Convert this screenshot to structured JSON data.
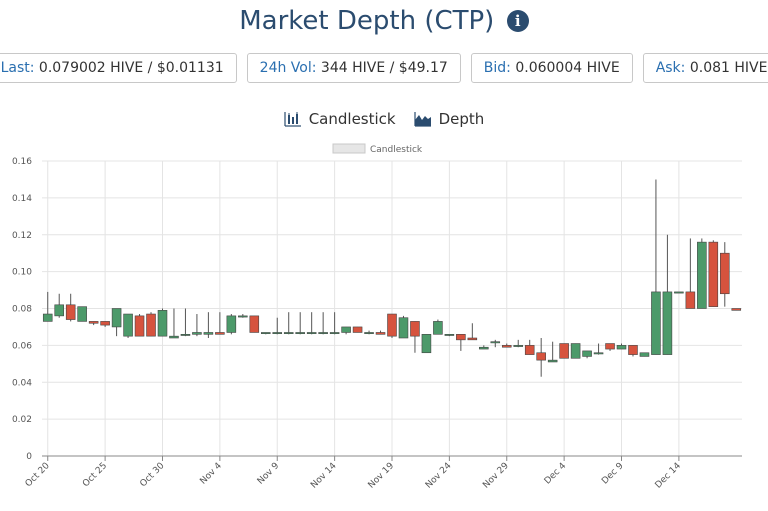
{
  "title": "Market Depth (CTP)",
  "info_icon": "info-circle-icon",
  "stats": [
    {
      "key": "Last:",
      "value": "0.079002 HIVE / $0.01131"
    },
    {
      "key": "24h Vol:",
      "value": "344 HIVE / $49.17"
    },
    {
      "key": "Bid:",
      "value": "0.060004 HIVE"
    },
    {
      "key": "Ask:",
      "value": "0.081 HIVE"
    }
  ],
  "toggles": {
    "candlestick": {
      "label": "Candlestick",
      "icon": "candlestick-chart-icon"
    },
    "depth": {
      "label": "Depth",
      "icon": "depth-chart-icon"
    }
  },
  "colors": {
    "up": "#4c9a6a",
    "down": "#d6533e",
    "primary": "#2b4c6f",
    "link": "#2a6fb0"
  },
  "chart_data": {
    "type": "candlestick",
    "legend": "Candlestick",
    "legend_position": "top-center",
    "grid": true,
    "ylim": [
      0,
      0.16
    ],
    "yticks": [
      "0",
      "0.02",
      "0.04",
      "0.06",
      "0.08",
      "0.10",
      "0.12",
      "0.14",
      "0.16"
    ],
    "ytick_values": [
      0,
      0.02,
      0.04,
      0.06,
      0.08,
      0.1,
      0.12,
      0.14,
      0.16
    ],
    "xticks": [
      "Oct 20",
      "Oct 25",
      "Oct 30",
      "Nov 4",
      "Nov 9",
      "Nov 14",
      "Nov 19",
      "Nov 24",
      "Nov 29",
      "Dec 4",
      "Dec 9",
      "Dec 14"
    ],
    "series": [
      {
        "date": "Oct 20",
        "open": 0.073,
        "high": 0.089,
        "low": 0.073,
        "close": 0.077
      },
      {
        "date": "Oct 21",
        "open": 0.076,
        "high": 0.088,
        "low": 0.075,
        "close": 0.082
      },
      {
        "date": "Oct 22",
        "open": 0.082,
        "high": 0.088,
        "low": 0.073,
        "close": 0.074
      },
      {
        "date": "Oct 23",
        "open": 0.073,
        "high": 0.081,
        "low": 0.073,
        "close": 0.081
      },
      {
        "date": "Oct 24",
        "open": 0.073,
        "high": 0.073,
        "low": 0.071,
        "close": 0.072
      },
      {
        "date": "Oct 25",
        "open": 0.073,
        "high": 0.073,
        "low": 0.07,
        "close": 0.071
      },
      {
        "date": "Oct 26",
        "open": 0.07,
        "high": 0.08,
        "low": 0.065,
        "close": 0.08
      },
      {
        "date": "Oct 27",
        "open": 0.065,
        "high": 0.077,
        "low": 0.064,
        "close": 0.077
      },
      {
        "date": "Oct 28",
        "open": 0.076,
        "high": 0.077,
        "low": 0.065,
        "close": 0.065
      },
      {
        "date": "Oct 29",
        "open": 0.077,
        "high": 0.078,
        "low": 0.065,
        "close": 0.065
      },
      {
        "date": "Oct 30",
        "open": 0.065,
        "high": 0.08,
        "low": 0.065,
        "close": 0.079
      },
      {
        "date": "Oct 31",
        "open": 0.064,
        "high": 0.08,
        "low": 0.064,
        "close": 0.065
      },
      {
        "date": "Nov 1",
        "open": 0.066,
        "high": 0.08,
        "low": 0.065,
        "close": 0.066
      },
      {
        "date": "Nov 2",
        "open": 0.066,
        "high": 0.077,
        "low": 0.065,
        "close": 0.067
      },
      {
        "date": "Nov 3",
        "open": 0.066,
        "high": 0.078,
        "low": 0.064,
        "close": 0.067
      },
      {
        "date": "Nov 4",
        "open": 0.067,
        "high": 0.078,
        "low": 0.066,
        "close": 0.066
      },
      {
        "date": "Nov 5",
        "open": 0.067,
        "high": 0.077,
        "low": 0.066,
        "close": 0.076
      },
      {
        "date": "Nov 6",
        "open": 0.076,
        "high": 0.077,
        "low": 0.075,
        "close": 0.076
      },
      {
        "date": "Nov 7",
        "open": 0.076,
        "high": 0.076,
        "low": 0.067,
        "close": 0.067
      },
      {
        "date": "Nov 8",
        "open": 0.067,
        "high": 0.067,
        "low": 0.066,
        "close": 0.067
      },
      {
        "date": "Nov 9",
        "open": 0.067,
        "high": 0.075,
        "low": 0.066,
        "close": 0.067
      },
      {
        "date": "Nov 10",
        "open": 0.067,
        "high": 0.078,
        "low": 0.066,
        "close": 0.067
      },
      {
        "date": "Nov 11",
        "open": 0.067,
        "high": 0.078,
        "low": 0.066,
        "close": 0.067
      },
      {
        "date": "Nov 12",
        "open": 0.067,
        "high": 0.078,
        "low": 0.066,
        "close": 0.067
      },
      {
        "date": "Nov 13",
        "open": 0.067,
        "high": 0.078,
        "low": 0.066,
        "close": 0.067
      },
      {
        "date": "Nov 14",
        "open": 0.067,
        "high": 0.078,
        "low": 0.066,
        "close": 0.067
      },
      {
        "date": "Nov 15",
        "open": 0.067,
        "high": 0.07,
        "low": 0.066,
        "close": 0.07
      },
      {
        "date": "Nov 16",
        "open": 0.07,
        "high": 0.07,
        "low": 0.067,
        "close": 0.067
      },
      {
        "date": "Nov 17",
        "open": 0.067,
        "high": 0.068,
        "low": 0.066,
        "close": 0.067
      },
      {
        "date": "Nov 18",
        "open": 0.067,
        "high": 0.068,
        "low": 0.066,
        "close": 0.066
      },
      {
        "date": "Nov 19",
        "open": 0.077,
        "high": 0.077,
        "low": 0.064,
        "close": 0.065
      },
      {
        "date": "Nov 20",
        "open": 0.064,
        "high": 0.076,
        "low": 0.064,
        "close": 0.075
      },
      {
        "date": "Nov 21",
        "open": 0.073,
        "high": 0.073,
        "low": 0.056,
        "close": 0.065
      },
      {
        "date": "Nov 22",
        "open": 0.056,
        "high": 0.066,
        "low": 0.056,
        "close": 0.066
      },
      {
        "date": "Nov 23",
        "open": 0.066,
        "high": 0.074,
        "low": 0.066,
        "close": 0.073
      },
      {
        "date": "Nov 24",
        "open": 0.066,
        "high": 0.066,
        "low": 0.065,
        "close": 0.066
      },
      {
        "date": "Nov 25",
        "open": 0.066,
        "high": 0.066,
        "low": 0.057,
        "close": 0.063
      },
      {
        "date": "Nov 26",
        "open": 0.064,
        "high": 0.072,
        "low": 0.063,
        "close": 0.063
      },
      {
        "date": "Nov 27",
        "open": 0.058,
        "high": 0.06,
        "low": 0.058,
        "close": 0.059
      },
      {
        "date": "Nov 28",
        "open": 0.062,
        "high": 0.063,
        "low": 0.059,
        "close": 0.062
      },
      {
        "date": "Nov 29",
        "open": 0.06,
        "high": 0.061,
        "low": 0.059,
        "close": 0.059
      },
      {
        "date": "Nov 30",
        "open": 0.06,
        "high": 0.063,
        "low": 0.059,
        "close": 0.06
      },
      {
        "date": "Dec 1",
        "open": 0.06,
        "high": 0.063,
        "low": 0.055,
        "close": 0.055
      },
      {
        "date": "Dec 2",
        "open": 0.056,
        "high": 0.064,
        "low": 0.043,
        "close": 0.052
      },
      {
        "date": "Dec 3",
        "open": 0.051,
        "high": 0.062,
        "low": 0.051,
        "close": 0.052
      },
      {
        "date": "Dec 4",
        "open": 0.061,
        "high": 0.061,
        "low": 0.053,
        "close": 0.053
      },
      {
        "date": "Dec 5",
        "open": 0.053,
        "high": 0.061,
        "low": 0.053,
        "close": 0.061
      },
      {
        "date": "Dec 6",
        "open": 0.054,
        "high": 0.057,
        "low": 0.053,
        "close": 0.057
      },
      {
        "date": "Dec 7",
        "open": 0.056,
        "high": 0.061,
        "low": 0.055,
        "close": 0.056
      },
      {
        "date": "Dec 8",
        "open": 0.061,
        "high": 0.061,
        "low": 0.057,
        "close": 0.058
      },
      {
        "date": "Dec 9",
        "open": 0.058,
        "high": 0.061,
        "low": 0.058,
        "close": 0.06
      },
      {
        "date": "Dec 10",
        "open": 0.06,
        "high": 0.06,
        "low": 0.054,
        "close": 0.055
      },
      {
        "date": "Dec 11",
        "open": 0.054,
        "high": 0.056,
        "low": 0.054,
        "close": 0.056
      },
      {
        "date": "Dec 12",
        "open": 0.055,
        "high": 0.15,
        "low": 0.055,
        "close": 0.089
      },
      {
        "date": "Dec 13",
        "open": 0.055,
        "high": 0.12,
        "low": 0.055,
        "close": 0.089
      },
      {
        "date": "Dec 14",
        "open": 0.089,
        "high": 0.089,
        "low": 0.089,
        "close": 0.089
      },
      {
        "date": "Dec 15",
        "open": 0.089,
        "high": 0.118,
        "low": 0.08,
        "close": 0.08
      },
      {
        "date": "Dec 16",
        "open": 0.08,
        "high": 0.118,
        "low": 0.08,
        "close": 0.116
      },
      {
        "date": "Dec 17",
        "open": 0.116,
        "high": 0.117,
        "low": 0.081,
        "close": 0.081
      },
      {
        "date": "Dec 18",
        "open": 0.11,
        "high": 0.116,
        "low": 0.081,
        "close": 0.088
      },
      {
        "date": "Dec 19",
        "open": 0.08,
        "high": 0.08,
        "low": 0.079,
        "close": 0.079
      }
    ]
  }
}
